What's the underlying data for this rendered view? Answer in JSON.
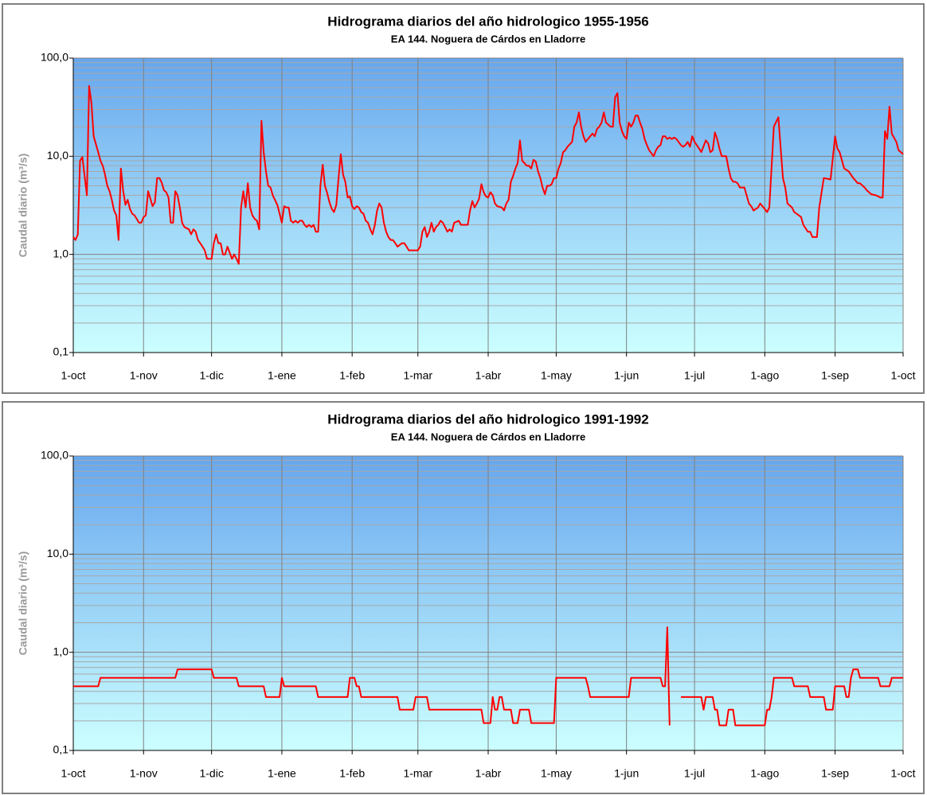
{
  "chart_data": [
    {
      "type": "line",
      "title": "Hidrograma diarios del año hidrologico 1955-1956",
      "subtitle": "EA 144.   Noguera de Cárdos en Lladorre",
      "y_label": "Caudal diario (m³/s)",
      "x": [
        0,
        1,
        2,
        3,
        4,
        6,
        7,
        8,
        9,
        11,
        12,
        13,
        14,
        15,
        16,
        17,
        18,
        19,
        20,
        21,
        22,
        23,
        24,
        25,
        26,
        27,
        28,
        29,
        30,
        31,
        32,
        33,
        34,
        35,
        36,
        37,
        38,
        39,
        40,
        41,
        42,
        43,
        44,
        45,
        46,
        47,
        48,
        49,
        51,
        52,
        53,
        54,
        55,
        56,
        57,
        58,
        59,
        60,
        61,
        62,
        63,
        64,
        65,
        66,
        67,
        68,
        70,
        71,
        72,
        73,
        74,
        75,
        76,
        77,
        78,
        79,
        80,
        81,
        82,
        83,
        84,
        85,
        86,
        87,
        88,
        90,
        91,
        92,
        93,
        94,
        95,
        96,
        97,
        98,
        99,
        100,
        101,
        102,
        103,
        104,
        105,
        106,
        107,
        108,
        109,
        110,
        111,
        112,
        113,
        114,
        115,
        116,
        117,
        118,
        119,
        120,
        121,
        122,
        123,
        124,
        125,
        126,
        127,
        128,
        129,
        130,
        131,
        132,
        133,
        134,
        135,
        136,
        137,
        138,
        139,
        140,
        141,
        142,
        143,
        145,
        146,
        147,
        148,
        149,
        150,
        151,
        152,
        153,
        154,
        155,
        156,
        157,
        158,
        159,
        160,
        161,
        162,
        163,
        164,
        165,
        166,
        167,
        168,
        170,
        171,
        172,
        173,
        174,
        175,
        176,
        177,
        178,
        179,
        180,
        181,
        182,
        183,
        184,
        185,
        186,
        187,
        189,
        190,
        191,
        192,
        193,
        194,
        195,
        196,
        197,
        198,
        199,
        200,
        201,
        202,
        203,
        204,
        205,
        206,
        207,
        208,
        209,
        210,
        211,
        212,
        213,
        214,
        215,
        216,
        217,
        218,
        220,
        221,
        222,
        223,
        224,
        225,
        226,
        227,
        228,
        229,
        230,
        231,
        232,
        233,
        234,
        235,
        236,
        237,
        238,
        239,
        240,
        241,
        242,
        243,
        244,
        245,
        246,
        247,
        248,
        249,
        250,
        251,
        252,
        253,
        254,
        256,
        257,
        258,
        259,
        260,
        261,
        262,
        263,
        264,
        265,
        266,
        267,
        268,
        269,
        270,
        271,
        272,
        273,
        274,
        275,
        276,
        277,
        279,
        280,
        281,
        282,
        283,
        284,
        285,
        286,
        288,
        289,
        290,
        291,
        292,
        293,
        294,
        296,
        298,
        299,
        300,
        302,
        303,
        305,
        306,
        307,
        309,
        311,
        312,
        313,
        314,
        315,
        317,
        318,
        320,
        321,
        322,
        324,
        325,
        326,
        328,
        329,
        331,
        334,
        336,
        337,
        338,
        340,
        342,
        344,
        346,
        347,
        349,
        350,
        352,
        354,
        356,
        357,
        358,
        359,
        360,
        361,
        363,
        364,
        365,
        366
      ],
      "series": [
        {
          "color": "#ff0000",
          "values": [
            1.5,
            1.4,
            1.6,
            9,
            9.8,
            4,
            52,
            35,
            16,
            11,
            9,
            8,
            6.5,
            5,
            4.4,
            3.6,
            2.8,
            2.5,
            1.4,
            7.5,
            4.5,
            3.2,
            3.6,
            2.9,
            2.6,
            2.5,
            2.3,
            2.1,
            2.1,
            2.4,
            2.5,
            4.4,
            3.7,
            3.1,
            3.4,
            6,
            6,
            5.4,
            4.5,
            4.3,
            3.8,
            2.1,
            2.1,
            4.4,
            4,
            3,
            2.1,
            1.9,
            1.8,
            1.6,
            1.8,
            1.7,
            1.4,
            1.3,
            1.2,
            1.1,
            0.9,
            0.9,
            0.9,
            1.3,
            1.6,
            1.3,
            1.3,
            1,
            1,
            1.2,
            0.9,
            1,
            0.9,
            0.8,
            3,
            4.4,
            3,
            5.3,
            3,
            2.5,
            2.3,
            2.2,
            1.8,
            23,
            11,
            7,
            5,
            4.8,
            4,
            3.2,
            2.6,
            2.1,
            3.1,
            3,
            3,
            2.2,
            2.1,
            2.2,
            2.1,
            2.2,
            2.2,
            2,
            1.9,
            2,
            1.9,
            2,
            1.7,
            1.7,
            5,
            8.2,
            5,
            4.2,
            3.4,
            2.9,
            2.7,
            3.2,
            6,
            10.5,
            6.5,
            5.5,
            3.8,
            3.9,
            3.1,
            2.9,
            3.1,
            3,
            2.7,
            2.6,
            2.2,
            2.1,
            1.8,
            1.6,
            2,
            2.8,
            3.3,
            3,
            2.1,
            1.7,
            1.5,
            1.4,
            1.4,
            1.3,
            1.2,
            1.3,
            1.3,
            1.2,
            1.1,
            1.1,
            1.1,
            1.1,
            1.1,
            1.2,
            1.7,
            1.9,
            1.5,
            1.7,
            2.1,
            1.7,
            1.9,
            2,
            2.2,
            2.1,
            1.9,
            1.7,
            1.8,
            1.7,
            2.1,
            2.2,
            2,
            2,
            2,
            2,
            2.8,
            3.5,
            3,
            3.3,
            3.7,
            5.2,
            4.3,
            3.9,
            3.8,
            4.3,
            4,
            3.3,
            3.1,
            3,
            2.8,
            3.3,
            3.6,
            5.5,
            6.3,
            7.5,
            8.5,
            14.5,
            9,
            8.5,
            8,
            8,
            7.5,
            9.2,
            8.8,
            7,
            6,
            4.8,
            4.1,
            5,
            5,
            5.2,
            6,
            6,
            7.5,
            8.5,
            11,
            11.5,
            12.5,
            14,
            20,
            22,
            28,
            20,
            16,
            14,
            15,
            16,
            17,
            16,
            19,
            20,
            22,
            28,
            22,
            21,
            20,
            20,
            40,
            44,
            22,
            18,
            16,
            15,
            22,
            20,
            22,
            26,
            26,
            22,
            19,
            15,
            13,
            11.5,
            10,
            11.5,
            12.5,
            13,
            16,
            16,
            15,
            15.5,
            15,
            15.5,
            15,
            14,
            13,
            12.5,
            13,
            14,
            12.5,
            16,
            14,
            13,
            12,
            11,
            14.5,
            13.5,
            11,
            11.5,
            17.5,
            15,
            12,
            10,
            10,
            7.5,
            6,
            5.5,
            5.5,
            5.3,
            4.8,
            4.8,
            3.3,
            3.1,
            2.8,
            3,
            3.3,
            2.9,
            2.7,
            3,
            20,
            25,
            12,
            6,
            4.8,
            3.3,
            3,
            2.7,
            2.5,
            2.4,
            2,
            1.7,
            1.7,
            1.5,
            1.5,
            3,
            6,
            5.8,
            16,
            12,
            11,
            7.5,
            7,
            6,
            5.3,
            5.3,
            4.8,
            4.5,
            4.1,
            4,
            3.8,
            3.8,
            18,
            15,
            32,
            17,
            14,
            11.5,
            11,
            10.5
          ]
        }
      ],
      "xlim": [
        0,
        366
      ],
      "xticks": [
        {
          "value": 0,
          "label": "1-oct"
        },
        {
          "value": 31,
          "label": "1-nov"
        },
        {
          "value": 61,
          "label": "1-dic"
        },
        {
          "value": 92,
          "label": "1-ene"
        },
        {
          "value": 123,
          "label": "1-feb"
        },
        {
          "value": 152,
          "label": "1-mar"
        },
        {
          "value": 183,
          "label": "1-abr"
        },
        {
          "value": 213,
          "label": "1-may"
        },
        {
          "value": 244,
          "label": "1-jun"
        },
        {
          "value": 274,
          "label": "1-jul"
        },
        {
          "value": 305,
          "label": "1-ago"
        },
        {
          "value": 336,
          "label": "1-sep"
        },
        {
          "value": 366,
          "label": "1-oct"
        }
      ],
      "ylim": [
        0.1,
        100
      ],
      "yticks": [
        {
          "value": 0.1,
          "label": "0,1"
        },
        {
          "value": 1,
          "label": "1,0"
        },
        {
          "value": 10,
          "label": "10,0"
        },
        {
          "value": 100,
          "label": "100,0"
        }
      ],
      "yminor": [
        0.2,
        0.3,
        0.4,
        0.5,
        0.6,
        0.7,
        0.8,
        0.9,
        2,
        3,
        4,
        5,
        6,
        7,
        8,
        9,
        20,
        30,
        40,
        50,
        60,
        70,
        80,
        90
      ],
      "log_y": true,
      "grid": true
    },
    {
      "type": "line",
      "title": "Hidrograma diarios del año hidrologico 1991-1992",
      "subtitle": "EA 144.   Noguera de Cárdos en Lladorre",
      "y_label": "Caudal diario (m³/s)",
      "x": [
        0,
        11,
        12,
        45,
        46,
        61,
        62,
        72,
        73,
        84,
        85,
        91,
        92,
        93,
        107,
        108,
        121,
        122,
        124,
        125,
        126,
        127,
        143,
        144,
        150,
        151,
        156,
        157,
        180,
        181,
        184,
        185,
        186,
        187,
        188,
        189,
        190,
        193,
        194,
        196,
        197,
        201,
        202,
        212,
        213,
        226,
        227,
        228,
        245,
        246,
        259,
        260,
        261,
        262,
        263,
        264,
        268,
        277,
        278,
        279,
        282,
        283,
        284,
        285,
        288,
        289,
        291,
        292,
        305,
        306,
        307,
        308,
        309,
        317,
        318,
        324,
        325,
        331,
        332,
        335,
        336,
        340,
        341,
        342,
        343,
        344,
        346,
        347,
        355,
        356,
        360,
        361,
        366
      ],
      "series": [
        {
          "color": "#ff0000",
          "values": [
            0.45,
            0.45,
            0.55,
            0.55,
            0.67,
            0.67,
            0.55,
            0.55,
            0.45,
            0.45,
            0.35,
            0.35,
            0.55,
            0.45,
            0.45,
            0.35,
            0.35,
            0.55,
            0.55,
            0.45,
            0.45,
            0.35,
            0.35,
            0.26,
            0.26,
            0.35,
            0.35,
            0.26,
            0.26,
            0.19,
            0.19,
            0.35,
            0.26,
            0.26,
            0.35,
            0.35,
            0.26,
            0.26,
            0.19,
            0.19,
            0.26,
            0.26,
            0.19,
            0.19,
            0.55,
            0.55,
            0.45,
            0.35,
            0.35,
            0.55,
            0.55,
            0.45,
            0.45,
            1.8,
            0.18,
            null,
            0.35,
            0.35,
            0.26,
            0.35,
            0.35,
            0.26,
            0.26,
            0.18,
            0.18,
            0.26,
            0.26,
            0.18,
            0.18,
            0.26,
            0.26,
            0.35,
            0.55,
            0.55,
            0.45,
            0.45,
            0.35,
            0.35,
            0.26,
            0.26,
            0.45,
            0.45,
            0.35,
            0.35,
            0.55,
            0.67,
            0.67,
            0.55,
            0.55,
            0.45,
            0.45,
            0.55,
            0.55
          ]
        }
      ],
      "xlim": [
        0,
        366
      ],
      "xticks": [
        {
          "value": 0,
          "label": "1-oct"
        },
        {
          "value": 31,
          "label": "1-nov"
        },
        {
          "value": 61,
          "label": "1-dic"
        },
        {
          "value": 92,
          "label": "1-ene"
        },
        {
          "value": 123,
          "label": "1-feb"
        },
        {
          "value": 152,
          "label": "1-mar"
        },
        {
          "value": 183,
          "label": "1-abr"
        },
        {
          "value": 213,
          "label": "1-may"
        },
        {
          "value": 244,
          "label": "1-jun"
        },
        {
          "value": 274,
          "label": "1-jul"
        },
        {
          "value": 305,
          "label": "1-ago"
        },
        {
          "value": 336,
          "label": "1-sep"
        },
        {
          "value": 366,
          "label": "1-oct"
        }
      ],
      "ylim": [
        0.1,
        100
      ],
      "yticks": [
        {
          "value": 0.1,
          "label": "0,1"
        },
        {
          "value": 1,
          "label": "1,0"
        },
        {
          "value": 10,
          "label": "10,0"
        },
        {
          "value": 100,
          "label": "100,0"
        }
      ],
      "yminor": [
        0.2,
        0.3,
        0.4,
        0.5,
        0.6,
        0.7,
        0.8,
        0.9,
        2,
        3,
        4,
        5,
        6,
        7,
        8,
        9,
        20,
        30,
        40,
        50,
        60,
        70,
        80,
        90
      ],
      "log_y": true,
      "grid": true
    }
  ]
}
